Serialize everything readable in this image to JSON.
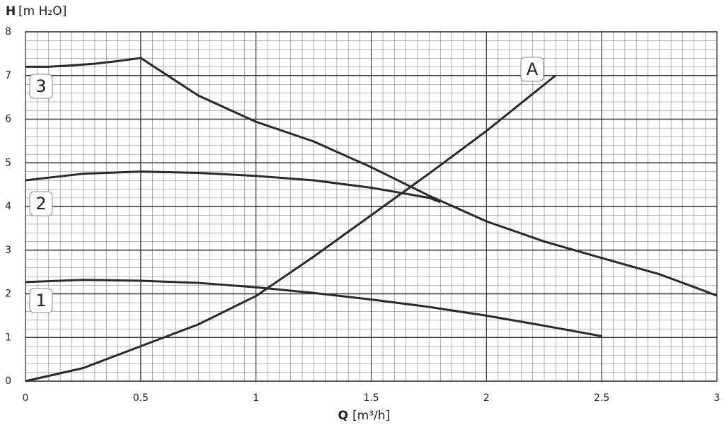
{
  "chart_data": {
    "type": "line",
    "y_label_symbol": "H",
    "y_label_unit": "[m H₂O]",
    "x_label_symbol": "Q",
    "x_label_unit": "[m³/h]",
    "xlim": [
      0,
      3
    ],
    "xticks": [
      0,
      0.5,
      1,
      1.5,
      2,
      2.5,
      3
    ],
    "ylim": [
      0,
      8
    ],
    "yticks": [
      0,
      1,
      2,
      3,
      4,
      5,
      6,
      7,
      8
    ],
    "grid": true,
    "color": "#2a2a2a",
    "series": [
      {
        "name": "1",
        "x": [
          0,
          0.25,
          0.5,
          0.75,
          1.0,
          1.25,
          1.5,
          1.75,
          2.0,
          2.25,
          2.5
        ],
        "values": [
          2.27,
          2.32,
          2.3,
          2.25,
          2.15,
          2.02,
          1.87,
          1.7,
          1.5,
          1.27,
          1.03
        ]
      },
      {
        "name": "2",
        "x": [
          0,
          0.25,
          0.5,
          0.75,
          1.0,
          1.25,
          1.5,
          1.75,
          1.8
        ],
        "values": [
          4.6,
          4.75,
          4.8,
          4.77,
          4.7,
          4.6,
          4.43,
          4.2,
          4.1
        ]
      },
      {
        "name": "3",
        "x": [
          0,
          0.1,
          0.2,
          0.3,
          0.4,
          0.5,
          0.75,
          1.0,
          1.25,
          1.5,
          1.75,
          2.0,
          2.25,
          2.5,
          2.75,
          3.0
        ],
        "values": [
          7.2,
          7.2,
          7.23,
          7.27,
          7.33,
          7.4,
          6.54,
          5.94,
          5.49,
          4.9,
          4.25,
          3.66,
          3.2,
          2.82,
          2.45,
          1.96
        ]
      },
      {
        "name": "A",
        "x": [
          0,
          0.25,
          0.5,
          0.75,
          1.0,
          1.25,
          1.5,
          1.75,
          2.0,
          2.3
        ],
        "values": [
          0,
          0.3,
          0.8,
          1.3,
          1.95,
          2.85,
          3.8,
          4.75,
          5.73,
          7.0
        ]
      }
    ]
  }
}
